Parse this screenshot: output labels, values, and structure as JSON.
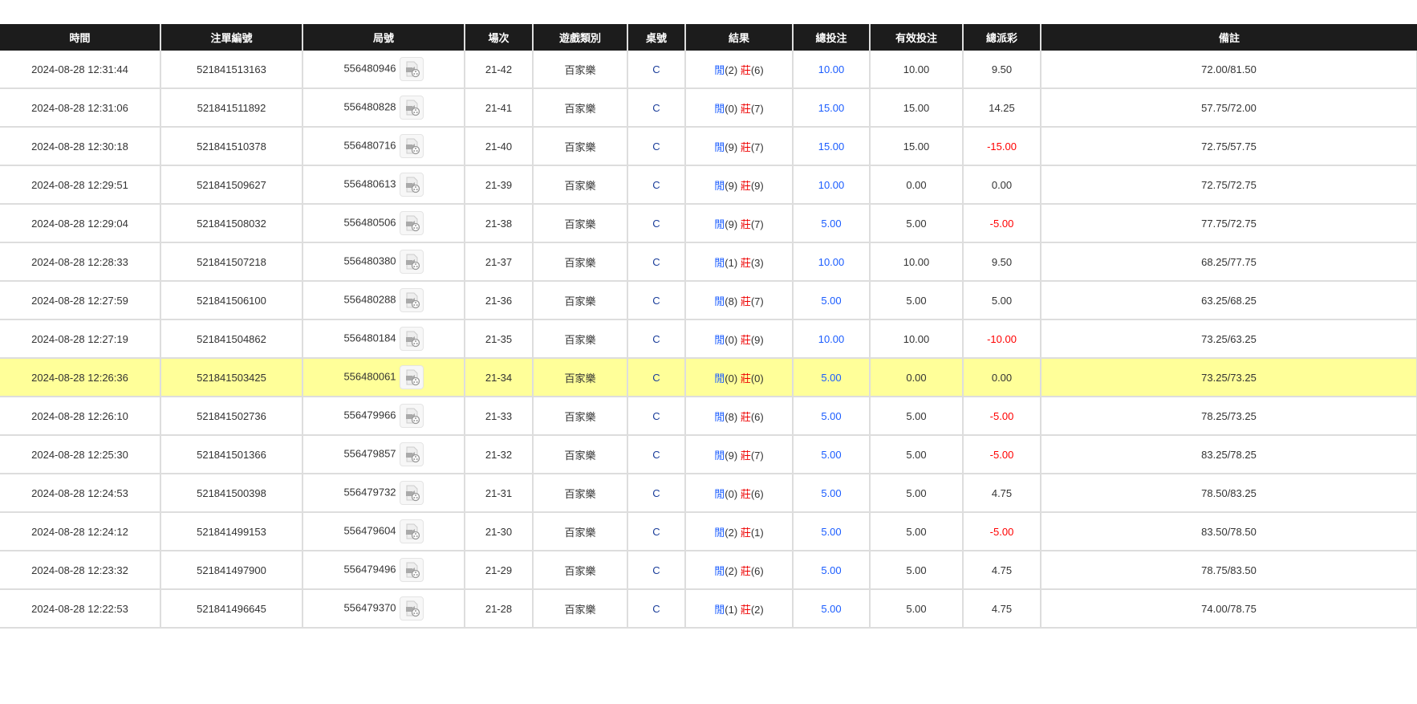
{
  "columns": [
    "時間",
    "注單編號",
    "局號",
    "場次",
    "遊戲類別",
    "桌號",
    "結果",
    "總投注",
    "有效投注",
    "總派彩",
    "備註"
  ],
  "colors": {
    "player": "#1a5cff",
    "banker": "#ff0000",
    "bet": "#1a5cff",
    "loss": "#ff0000",
    "highlight": "#ffff99"
  },
  "result_labels": {
    "player": "閒",
    "banker": "莊"
  },
  "icon": "game-replay-video-icon",
  "rows": [
    {
      "time": "2024-08-28 12:31:44",
      "bet_no": "521841513163",
      "round": "556480946",
      "shoe": "21-42",
      "game": "百家樂",
      "table": "C",
      "player": "(2)",
      "banker": "(6)",
      "total": "10.00",
      "valid": "10.00",
      "payout": "9.50",
      "neg": false,
      "note": "72.00/81.50"
    },
    {
      "time": "2024-08-28 12:31:06",
      "bet_no": "521841511892",
      "round": "556480828",
      "shoe": "21-41",
      "game": "百家樂",
      "table": "C",
      "player": "(0)",
      "banker": "(7)",
      "total": "15.00",
      "valid": "15.00",
      "payout": "14.25",
      "neg": false,
      "note": "57.75/72.00"
    },
    {
      "time": "2024-08-28 12:30:18",
      "bet_no": "521841510378",
      "round": "556480716",
      "shoe": "21-40",
      "game": "百家樂",
      "table": "C",
      "player": "(9)",
      "banker": "(7)",
      "total": "15.00",
      "valid": "15.00",
      "payout": "-15.00",
      "neg": true,
      "note": "72.75/57.75"
    },
    {
      "time": "2024-08-28 12:29:51",
      "bet_no": "521841509627",
      "round": "556480613",
      "shoe": "21-39",
      "game": "百家樂",
      "table": "C",
      "player": "(9)",
      "banker": "(9)",
      "total": "10.00",
      "valid": "0.00",
      "payout": "0.00",
      "neg": false,
      "note": "72.75/72.75"
    },
    {
      "time": "2024-08-28 12:29:04",
      "bet_no": "521841508032",
      "round": "556480506",
      "shoe": "21-38",
      "game": "百家樂",
      "table": "C",
      "player": "(9)",
      "banker": "(7)",
      "total": "5.00",
      "valid": "5.00",
      "payout": "-5.00",
      "neg": true,
      "note": "77.75/72.75"
    },
    {
      "time": "2024-08-28 12:28:33",
      "bet_no": "521841507218",
      "round": "556480380",
      "shoe": "21-37",
      "game": "百家樂",
      "table": "C",
      "player": "(1)",
      "banker": "(3)",
      "total": "10.00",
      "valid": "10.00",
      "payout": "9.50",
      "neg": false,
      "note": "68.25/77.75"
    },
    {
      "time": "2024-08-28 12:27:59",
      "bet_no": "521841506100",
      "round": "556480288",
      "shoe": "21-36",
      "game": "百家樂",
      "table": "C",
      "player": "(8)",
      "banker": "(7)",
      "total": "5.00",
      "valid": "5.00",
      "payout": "5.00",
      "neg": false,
      "note": "63.25/68.25"
    },
    {
      "time": "2024-08-28 12:27:19",
      "bet_no": "521841504862",
      "round": "556480184",
      "shoe": "21-35",
      "game": "百家樂",
      "table": "C",
      "player": "(0)",
      "banker": "(9)",
      "total": "10.00",
      "valid": "10.00",
      "payout": "-10.00",
      "neg": true,
      "note": "73.25/63.25"
    },
    {
      "time": "2024-08-28 12:26:36",
      "bet_no": "521841503425",
      "round": "556480061",
      "shoe": "21-34",
      "game": "百家樂",
      "table": "C",
      "player": "(0)",
      "banker": "(0)",
      "total": "5.00",
      "valid": "0.00",
      "payout": "0.00",
      "neg": false,
      "note": "73.25/73.25",
      "highlighted": true
    },
    {
      "time": "2024-08-28 12:26:10",
      "bet_no": "521841502736",
      "round": "556479966",
      "shoe": "21-33",
      "game": "百家樂",
      "table": "C",
      "player": "(8)",
      "banker": "(6)",
      "total": "5.00",
      "valid": "5.00",
      "payout": "-5.00",
      "neg": true,
      "note": "78.25/73.25"
    },
    {
      "time": "2024-08-28 12:25:30",
      "bet_no": "521841501366",
      "round": "556479857",
      "shoe": "21-32",
      "game": "百家樂",
      "table": "C",
      "player": "(9)",
      "banker": "(7)",
      "total": "5.00",
      "valid": "5.00",
      "payout": "-5.00",
      "neg": true,
      "note": "83.25/78.25"
    },
    {
      "time": "2024-08-28 12:24:53",
      "bet_no": "521841500398",
      "round": "556479732",
      "shoe": "21-31",
      "game": "百家樂",
      "table": "C",
      "player": "(0)",
      "banker": "(6)",
      "total": "5.00",
      "valid": "5.00",
      "payout": "4.75",
      "neg": false,
      "note": "78.50/83.25"
    },
    {
      "time": "2024-08-28 12:24:12",
      "bet_no": "521841499153",
      "round": "556479604",
      "shoe": "21-30",
      "game": "百家樂",
      "table": "C",
      "player": "(2)",
      "banker": "(1)",
      "total": "5.00",
      "valid": "5.00",
      "payout": "-5.00",
      "neg": true,
      "note": "83.50/78.50"
    },
    {
      "time": "2024-08-28 12:23:32",
      "bet_no": "521841497900",
      "round": "556479496",
      "shoe": "21-29",
      "game": "百家樂",
      "table": "C",
      "player": "(2)",
      "banker": "(6)",
      "total": "5.00",
      "valid": "5.00",
      "payout": "4.75",
      "neg": false,
      "note": "78.75/83.50"
    },
    {
      "time": "2024-08-28 12:22:53",
      "bet_no": "521841496645",
      "round": "556479370",
      "shoe": "21-28",
      "game": "百家樂",
      "table": "C",
      "player": "(1)",
      "banker": "(2)",
      "total": "5.00",
      "valid": "5.00",
      "payout": "4.75",
      "neg": false,
      "note": "74.00/78.75"
    }
  ]
}
